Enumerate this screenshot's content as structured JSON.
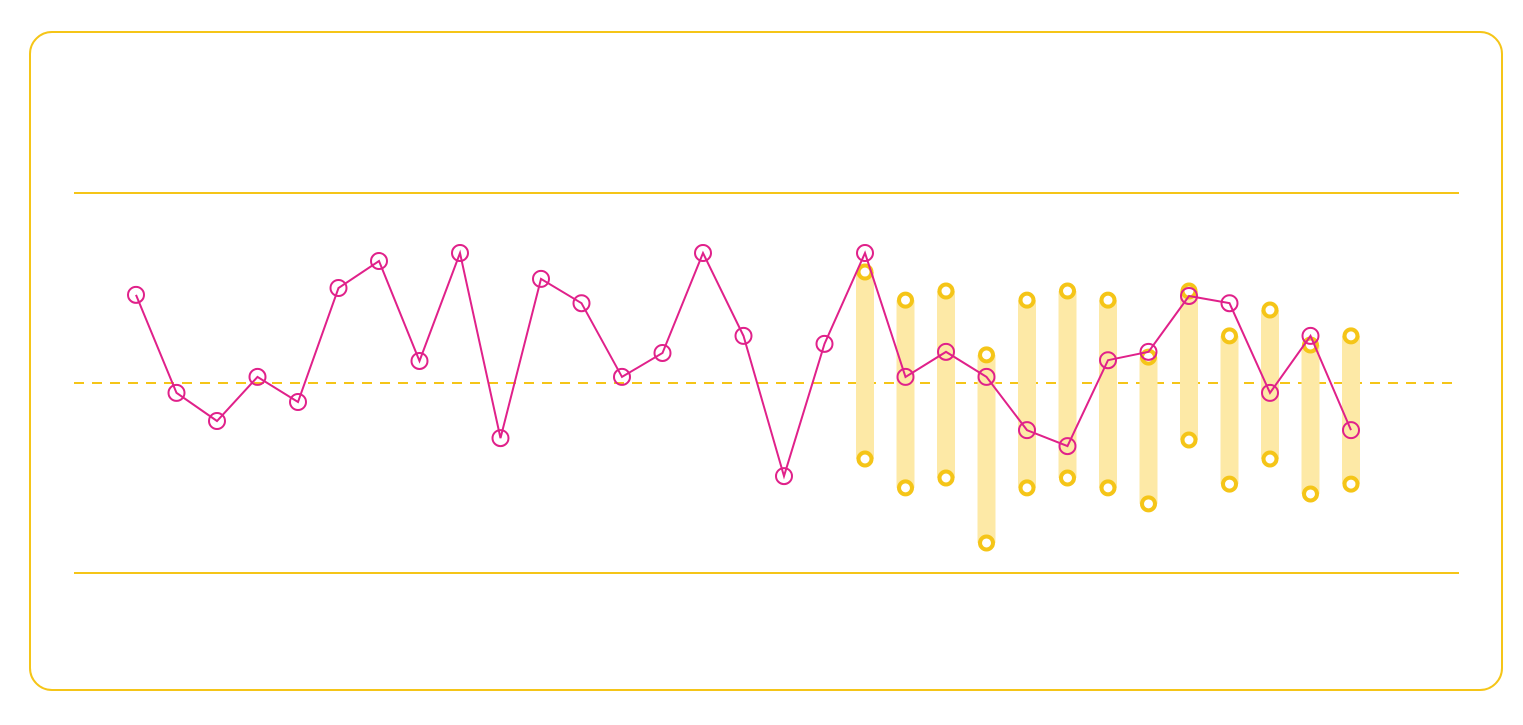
{
  "chart_data": {
    "type": "line",
    "values": [
      73.2,
      47.4,
      40,
      51.6,
      45,
      75,
      82.1,
      55.8,
      84.2,
      35.5,
      77.4,
      71,
      51.6,
      57.9,
      84.2,
      62.4,
      25.5,
      60.3,
      84.2,
      51.6,
      58.2,
      51.6,
      37.6,
      33.4,
      56,
      58.2,
      72.9,
      71,
      47.4,
      62.4,
      37.6
    ],
    "color": "#e0218a",
    "ranges": {
      "color": "#f5c518",
      "bar_color": "#fde9a6",
      "low": [
        null,
        null,
        null,
        null,
        null,
        null,
        null,
        null,
        null,
        null,
        null,
        null,
        null,
        null,
        null,
        null,
        null,
        null,
        30,
        22.4,
        25,
        7.9,
        22.4,
        25,
        22.4,
        18.2,
        35,
        23.4,
        30,
        20.8,
        23.4
      ],
      "high": [
        null,
        null,
        null,
        null,
        null,
        null,
        null,
        null,
        null,
        null,
        null,
        null,
        null,
        null,
        null,
        null,
        null,
        null,
        79.2,
        71.8,
        74.2,
        57.4,
        71.8,
        74.2,
        71.8,
        56.8,
        74.2,
        62.4,
        69.2,
        60,
        62.4
      ]
    },
    "limits": {
      "upper": 100,
      "center": 50,
      "lower": 0
    },
    "ylim": [
      0,
      100
    ]
  }
}
